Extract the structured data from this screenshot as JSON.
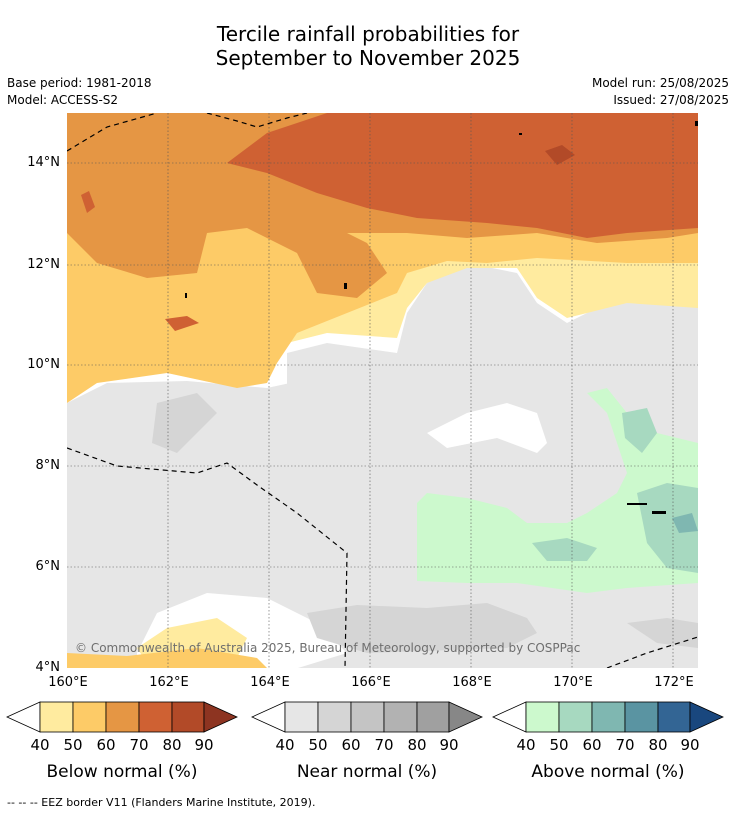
{
  "header": {
    "title_line1": "Tercile rainfall probabilities for",
    "title_line2": "September to November 2025",
    "base_period": "Base period: 1981-2018",
    "model": "Model: ACCESS-S2",
    "model_run": "Model run: 25/08/2025",
    "issued": "Issued: 27/08/2025"
  },
  "map": {
    "lat_labels": [
      "14°N",
      "12°N",
      "10°N",
      "8°N",
      "6°N",
      "4°N"
    ],
    "lon_labels": [
      "160°E",
      "162°E",
      "164°E",
      "166°E",
      "168°E",
      "170°E",
      "172°E"
    ],
    "copyright": "© Commonwealth of Australia 2025, Bureau of Meteorology, supported by COSPPac"
  },
  "legend": {
    "below": {
      "title": "Below normal (%)",
      "ticks": [
        "40",
        "50",
        "60",
        "70",
        "80",
        "90"
      ],
      "colors": [
        "#ffeb9f",
        "#fdcb67",
        "#e59644",
        "#cf6133",
        "#b24a28",
        "#8d3421"
      ]
    },
    "near": {
      "title": "Near normal (%)",
      "ticks": [
        "40",
        "50",
        "60",
        "70",
        "80",
        "90"
      ],
      "colors": [
        "#e6e6e6",
        "#d5d5d5",
        "#c4c4c4",
        "#b2b2b2",
        "#a0a0a0",
        "#878787"
      ]
    },
    "above": {
      "title": "Above normal (%)",
      "ticks": [
        "40",
        "50",
        "60",
        "70",
        "80",
        "90"
      ],
      "colors": [
        "#ccf9cd",
        "#a7d9c0",
        "#7fb7b1",
        "#5a94a2",
        "#336594",
        "#19477e"
      ]
    }
  },
  "footer": {
    "eez_note": "--  --  -- EEZ border V11 (Flanders Marine Institute, 2019)."
  }
}
